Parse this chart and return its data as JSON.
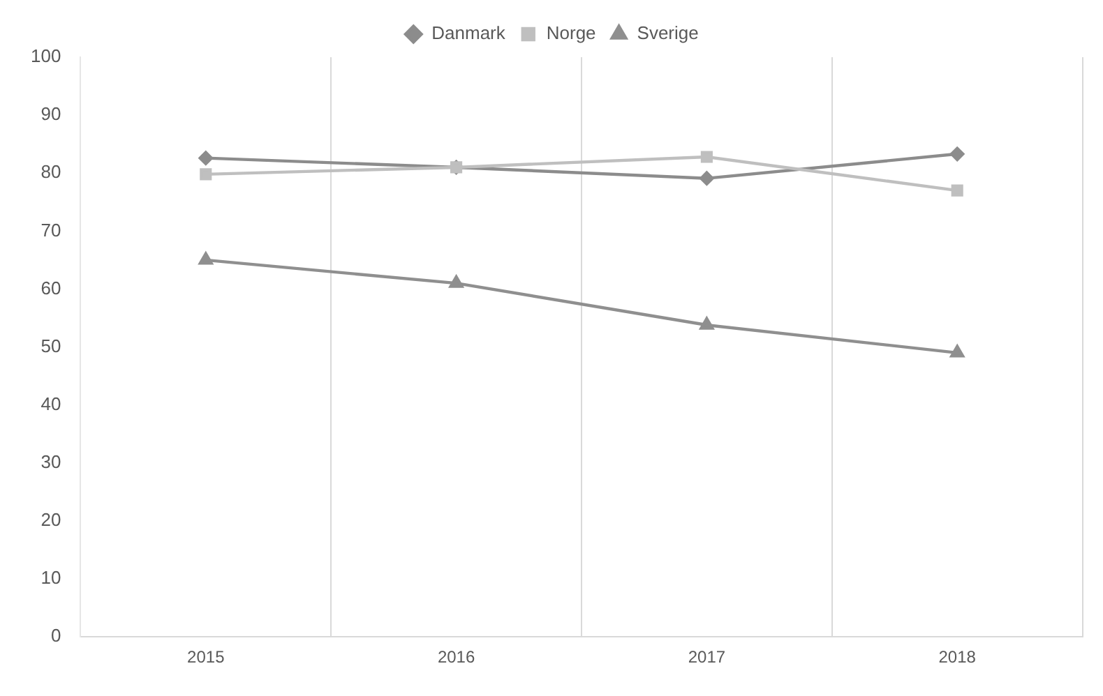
{
  "chart_data": {
    "type": "line",
    "categories": [
      "2015",
      "2016",
      "2017",
      "2018"
    ],
    "series": [
      {
        "name": "Danmark",
        "color": "#8c8c8c",
        "marker": "diamond",
        "values": [
          82.6,
          81,
          79.1,
          83.3
        ]
      },
      {
        "name": "Norge",
        "color": "#bfbfbf",
        "marker": "square",
        "values": [
          79.8,
          81,
          82.8,
          77
        ]
      },
      {
        "name": "Sverige",
        "color": "#8f8f8f",
        "marker": "triangle",
        "values": [
          65,
          61,
          53.8,
          49
        ]
      }
    ],
    "ylim": [
      0,
      100
    ],
    "yticks": [
      0,
      10,
      20,
      30,
      40,
      50,
      60,
      70,
      80,
      90,
      100
    ],
    "grid": "x",
    "legend": "top"
  }
}
